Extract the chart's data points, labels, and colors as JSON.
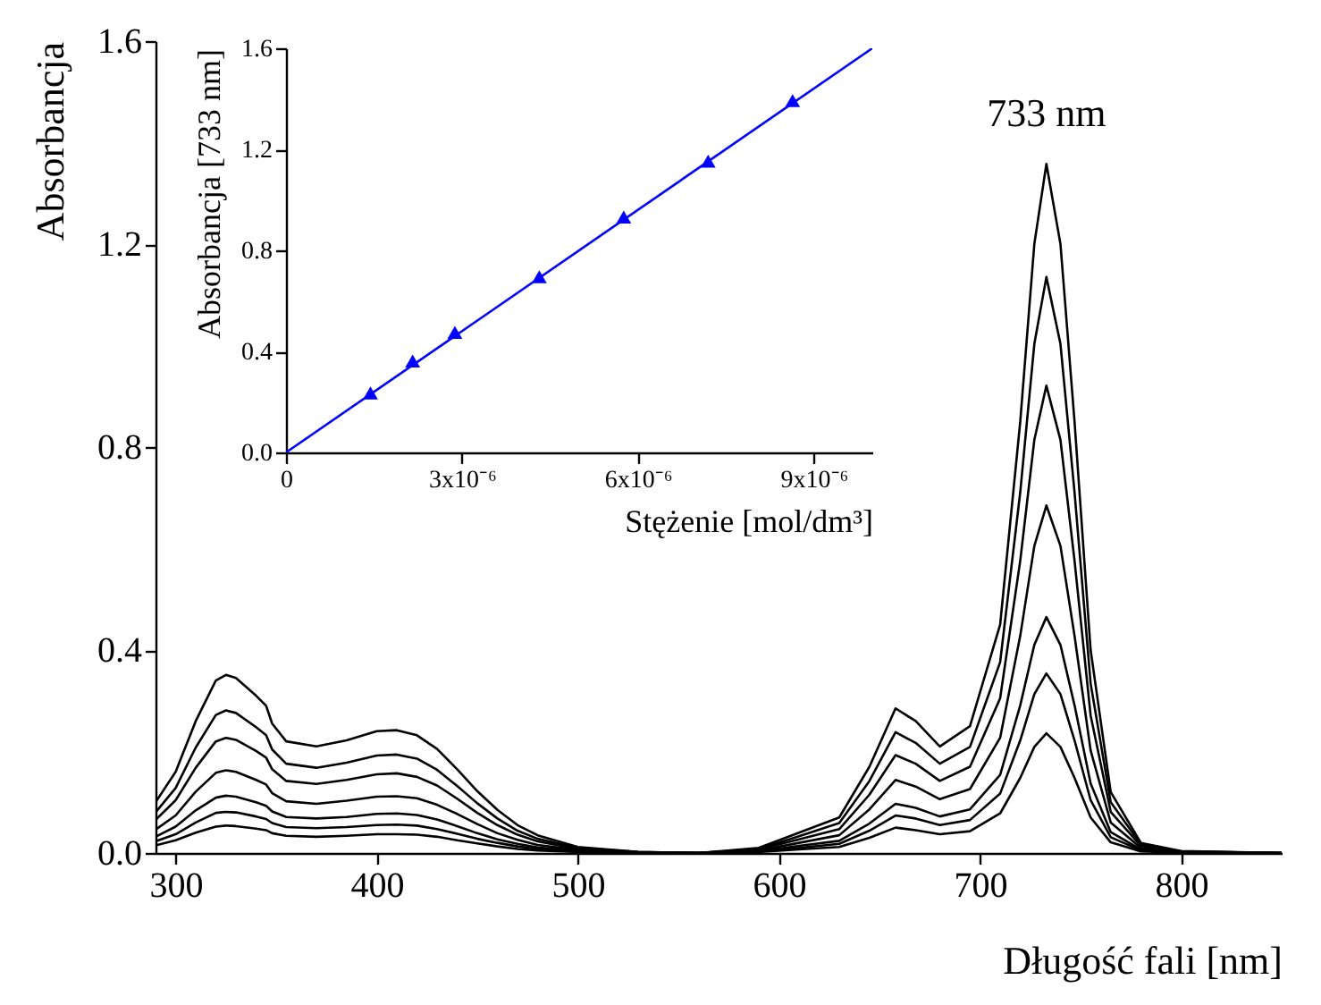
{
  "chart_data": [
    {
      "type": "line",
      "xlabel": "Długość fali [nm]",
      "ylabel": "Absorbancja",
      "xlim": [
        290,
        850
      ],
      "xticks": [
        300,
        400,
        500,
        600,
        700,
        800
      ],
      "ylim": [
        0,
        1.6
      ],
      "yticks": [
        {
          "value": 0,
          "label": "0.0"
        },
        0.4,
        0.8,
        1.2,
        1.6
      ],
      "x": [
        290,
        300,
        310,
        320,
        325,
        330,
        340,
        345,
        348,
        355,
        370,
        385,
        400,
        410,
        420,
        430,
        440,
        450,
        460,
        470,
        480,
        500,
        530,
        560,
        590,
        610,
        630,
        645,
        658,
        668,
        680,
        695,
        710,
        720,
        727,
        733,
        740,
        747,
        755,
        765,
        780,
        800,
        850
      ],
      "annotations": [
        {
          "text": "733 nm",
          "x": 733,
          "y": 1.358
        }
      ],
      "series": [
        {
          "color": "#000000",
          "values": [
            0.1,
            0.16,
            0.26,
            0.34,
            0.351,
            0.345,
            0.31,
            0.29,
            0.255,
            0.22,
            0.21,
            0.222,
            0.24,
            0.242,
            0.232,
            0.205,
            0.165,
            0.122,
            0.085,
            0.055,
            0.035,
            0.012,
            0.002,
            0,
            0.01,
            0.04,
            0.07,
            0.17,
            0.285,
            0.26,
            0.21,
            0.25,
            0.45,
            0.85,
            1.2,
            1.358,
            1.2,
            0.85,
            0.4,
            0.12,
            0.02,
            0.004,
            0
          ]
        },
        {
          "color": "#000000",
          "values": [
            0.08,
            0.128,
            0.208,
            0.272,
            0.281,
            0.276,
            0.248,
            0.232,
            0.204,
            0.176,
            0.168,
            0.178,
            0.192,
            0.194,
            0.186,
            0.164,
            0.132,
            0.098,
            0.068,
            0.044,
            0.028,
            0.01,
            0.002,
            0,
            0.008,
            0.033,
            0.059,
            0.142,
            0.238,
            0.217,
            0.176,
            0.209,
            0.376,
            0.711,
            1.003,
            1.135,
            1.003,
            0.711,
            0.334,
            0.1,
            0.017,
            0.003,
            0
          ]
        },
        {
          "color": "#000000",
          "values": [
            0.065,
            0.104,
            0.168,
            0.22,
            0.227,
            0.223,
            0.201,
            0.188,
            0.165,
            0.142,
            0.136,
            0.144,
            0.155,
            0.157,
            0.15,
            0.133,
            0.107,
            0.079,
            0.055,
            0.036,
            0.023,
            0.008,
            0.001,
            0,
            0.007,
            0.027,
            0.047,
            0.115,
            0.193,
            0.176,
            0.142,
            0.17,
            0.305,
            0.576,
            0.814,
            0.921,
            0.814,
            0.576,
            0.271,
            0.081,
            0.014,
            0.003,
            0
          ]
        },
        {
          "color": "#000000",
          "values": [
            0.046,
            0.074,
            0.121,
            0.158,
            0.163,
            0.16,
            0.144,
            0.135,
            0.118,
            0.102,
            0.097,
            0.103,
            0.111,
            0.112,
            0.108,
            0.095,
            0.077,
            0.057,
            0.039,
            0.026,
            0.016,
            0.006,
            0.001,
            0,
            0.005,
            0.02,
            0.035,
            0.086,
            0.144,
            0.131,
            0.106,
            0.126,
            0.227,
            0.428,
            0.605,
            0.685,
            0.605,
            0.428,
            0.202,
            0.06,
            0.01,
            0.002,
            0
          ]
        },
        {
          "color": "#000000",
          "values": [
            0.032,
            0.052,
            0.084,
            0.109,
            0.113,
            0.111,
            0.1,
            0.093,
            0.082,
            0.071,
            0.068,
            0.071,
            0.077,
            0.078,
            0.075,
            0.066,
            0.053,
            0.039,
            0.027,
            0.018,
            0.011,
            0.004,
            0.001,
            0,
            0.003,
            0.014,
            0.024,
            0.058,
            0.097,
            0.089,
            0.072,
            0.086,
            0.154,
            0.291,
            0.41,
            0.465,
            0.41,
            0.291,
            0.137,
            0.041,
            0.007,
            0.001,
            0
          ]
        },
        {
          "color": "#000000",
          "values": [
            0.023,
            0.037,
            0.06,
            0.079,
            0.081,
            0.08,
            0.072,
            0.067,
            0.059,
            0.051,
            0.049,
            0.051,
            0.055,
            0.056,
            0.054,
            0.047,
            0.038,
            0.028,
            0.02,
            0.013,
            0.008,
            0.003,
            0,
            0,
            0.003,
            0.01,
            0.018,
            0.044,
            0.074,
            0.068,
            0.055,
            0.065,
            0.117,
            0.222,
            0.313,
            0.354,
            0.313,
            0.222,
            0.104,
            0.031,
            0.005,
            0.001,
            0
          ]
        },
        {
          "color": "#000000",
          "values": [
            0.015,
            0.025,
            0.04,
            0.052,
            0.054,
            0.053,
            0.048,
            0.045,
            0.039,
            0.034,
            0.032,
            0.034,
            0.037,
            0.037,
            0.036,
            0.032,
            0.025,
            0.019,
            0.013,
            0.008,
            0.005,
            0.002,
            0,
            0,
            0.002,
            0.007,
            0.012,
            0.03,
            0.05,
            0.045,
            0.037,
            0.043,
            0.078,
            0.148,
            0.209,
            0.236,
            0.209,
            0.148,
            0.07,
            0.021,
            0.003,
            0.001,
            0
          ]
        }
      ]
    },
    {
      "type": "scatter",
      "xlabel": "Stężenie [mol/dm³]",
      "ylabel": "Absorbancja [733 nm]",
      "xlim": [
        0,
        1e-05
      ],
      "xticks": [
        0,
        {
          "value": 3e-06,
          "label": "3x10⁻⁶"
        },
        {
          "value": 6e-06,
          "label": "6x10⁻⁶"
        },
        {
          "value": 9e-06,
          "label": "9x10⁻⁶"
        }
      ],
      "ylim": [
        0,
        1.6
      ],
      "yticks": [
        {
          "value": 0,
          "label": "0.0"
        },
        0.4,
        0.8,
        1.2,
        1.6
      ],
      "x": [
        1.44e-06,
        2.16e-06,
        2.88e-06,
        4.32e-06,
        5.76e-06,
        7.2e-06,
        8.64e-06
      ],
      "series": [
        {
          "type": "line",
          "color": "#0000ff",
          "x": [
            0,
            1e-05
          ],
          "values": [
            0,
            1.6
          ]
        },
        {
          "color": "#0000ff",
          "marker": "triangle",
          "values": [
            0.235,
            0.362,
            0.475,
            0.696,
            0.932,
            1.153,
            1.393
          ]
        }
      ]
    }
  ]
}
